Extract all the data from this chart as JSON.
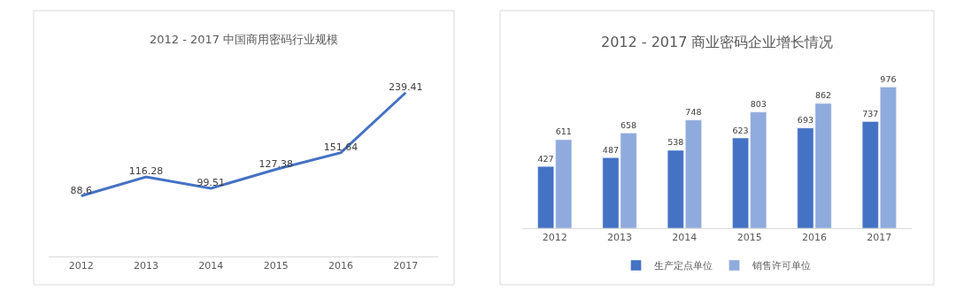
{
  "chart_data": [
    {
      "type": "line",
      "title": "2012 - 2017 中国商用密码行业规模",
      "categories": [
        "2012",
        "2013",
        "2014",
        "2015",
        "2016",
        "2017"
      ],
      "series": [
        {
          "color": "#4472c4",
          "values": [
            88.6,
            116.28,
            99.51,
            127.38,
            151.64,
            239.41
          ]
        }
      ],
      "data_labels": true,
      "legend": false,
      "tick_labels": "x",
      "marker": "none",
      "line_style": "solid"
    },
    {
      "type": "bar",
      "title": "2012 - 2017 商业密码企业增长情况",
      "categories": [
        "2012",
        "2013",
        "2014",
        "2015",
        "2016",
        "2017"
      ],
      "series": [
        {
          "name": "生产定点单位",
          "color": "#4472c4",
          "values": [
            427,
            487,
            538,
            623,
            693,
            737
          ]
        },
        {
          "name": "销售许可单位",
          "color": "#8faadc",
          "values": [
            611,
            658,
            748,
            803,
            862,
            976
          ]
        }
      ],
      "data_labels": true,
      "legend": "bottom",
      "tick_labels": "x"
    }
  ]
}
